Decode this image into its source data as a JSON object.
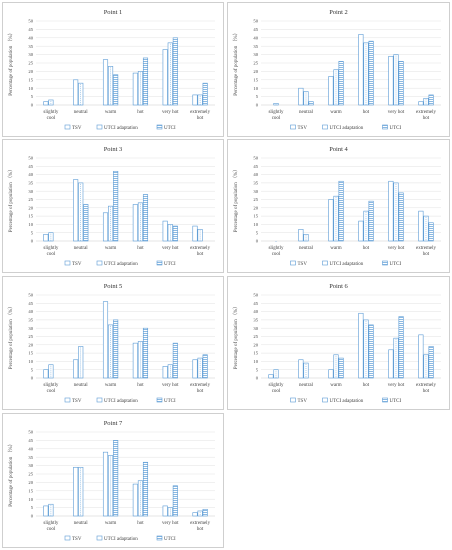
{
  "colors": {
    "series_stroke": "#5b9bd5",
    "hatch": "#5b9bd5",
    "grid": "#d9d9d9",
    "frame": "#cfcfcf"
  },
  "chart_data": [
    {
      "type": "bar",
      "title": "Point 1",
      "ylabel": "Percentage of population （%）",
      "ylim": [
        0,
        50
      ],
      "yticks": [
        0,
        5,
        10,
        15,
        20,
        25,
        30,
        35,
        40,
        45,
        50
      ],
      "categories": [
        "slightly cool",
        "neutral",
        "warm",
        "hot",
        "very hot",
        "extremely hot"
      ],
      "series": [
        {
          "name": "TSV",
          "values": [
            2,
            15,
            27,
            19,
            33,
            6
          ]
        },
        {
          "name": "UTCI adaptation",
          "values": [
            3,
            13,
            23,
            20,
            37,
            6
          ]
        },
        {
          "name": "UTCI",
          "values": [
            0,
            0,
            18,
            28,
            40,
            13
          ]
        }
      ]
    },
    {
      "type": "bar",
      "title": "Point 2",
      "ylabel": "Percentage of population （%）",
      "ylim": [
        0,
        50
      ],
      "yticks": [
        0,
        5,
        10,
        15,
        20,
        25,
        30,
        35,
        40,
        45,
        50
      ],
      "categories": [
        "slightly cool",
        "neutral",
        "warm",
        "hot",
        "very hot",
        "extremely hot"
      ],
      "series": [
        {
          "name": "TSV",
          "values": [
            0,
            10,
            17,
            42,
            29,
            2
          ]
        },
        {
          "name": "UTCI adaptation",
          "values": [
            1,
            8,
            21,
            37,
            30,
            4
          ]
        },
        {
          "name": "UTCI",
          "values": [
            0,
            2,
            26,
            38,
            26,
            6
          ]
        }
      ]
    },
    {
      "type": "bar",
      "title": "Point 3",
      "ylabel": "Percentage of population （%）",
      "ylim": [
        0,
        50
      ],
      "yticks": [
        0,
        5,
        10,
        15,
        20,
        25,
        30,
        35,
        40,
        45,
        50
      ],
      "categories": [
        "slightly cool",
        "neutral",
        "warm",
        "hot",
        "very hot",
        "extremely hot"
      ],
      "series": [
        {
          "name": "TSV",
          "values": [
            4,
            37,
            17,
            22,
            12,
            9
          ]
        },
        {
          "name": "UTCI adaptation",
          "values": [
            5,
            35,
            21,
            23,
            10,
            7
          ]
        },
        {
          "name": "UTCI",
          "values": [
            0,
            22,
            42,
            28,
            9,
            0
          ]
        }
      ]
    },
    {
      "type": "bar",
      "title": "Point 4",
      "ylabel": "Percentage of population （%）",
      "ylim": [
        0,
        50
      ],
      "yticks": [
        0,
        5,
        10,
        15,
        20,
        25,
        30,
        35,
        40,
        45,
        50
      ],
      "categories": [
        "slightly cool",
        "neutral",
        "warm",
        "hot",
        "very hot",
        "extremely hot"
      ],
      "series": [
        {
          "name": "TSV",
          "values": [
            0,
            7,
            25,
            12,
            36,
            18
          ]
        },
        {
          "name": "UTCI adaptation",
          "values": [
            0,
            4,
            27,
            18,
            35,
            15
          ]
        },
        {
          "name": "UTCI",
          "values": [
            0,
            0,
            36,
            24,
            29,
            11
          ]
        }
      ]
    },
    {
      "type": "bar",
      "title": "Point 5",
      "ylabel": "Percentage of population （%）",
      "ylim": [
        0,
        50
      ],
      "yticks": [
        0,
        5,
        10,
        15,
        20,
        25,
        30,
        35,
        40,
        45,
        50
      ],
      "categories": [
        "slightly cool",
        "neutral",
        "warm",
        "hot",
        "very hot",
        "extremely hot"
      ],
      "series": [
        {
          "name": "TSV",
          "values": [
            5,
            11,
            46,
            21,
            7,
            11
          ]
        },
        {
          "name": "UTCI adaptation",
          "values": [
            8,
            19,
            32,
            22,
            8,
            12
          ]
        },
        {
          "name": "UTCI",
          "values": [
            0,
            0,
            35,
            30,
            21,
            14
          ]
        }
      ]
    },
    {
      "type": "bar",
      "title": "Point 6",
      "ylabel": "Percentage of population （%）",
      "ylim": [
        0,
        50
      ],
      "yticks": [
        0,
        5,
        10,
        15,
        20,
        25,
        30,
        35,
        40,
        45,
        50
      ],
      "categories": [
        "slightly cool",
        "neutral",
        "warm",
        "hot",
        "very hot",
        "extremely hot"
      ],
      "series": [
        {
          "name": "TSV",
          "values": [
            2,
            11,
            5,
            39,
            17,
            26
          ]
        },
        {
          "name": "UTCI adaptation",
          "values": [
            5,
            9,
            14,
            35,
            24,
            14
          ]
        },
        {
          "name": "UTCI",
          "values": [
            0,
            0,
            12,
            32,
            37,
            19
          ]
        }
      ]
    },
    {
      "type": "bar",
      "title": "Point 7",
      "ylabel": "Percentage of population （%）",
      "ylim": [
        0,
        50
      ],
      "yticks": [
        0,
        5,
        10,
        15,
        20,
        25,
        30,
        35,
        40,
        45,
        50
      ],
      "categories": [
        "slightly cool",
        "neutral",
        "warm",
        "hot",
        "very hot",
        "extremely hot"
      ],
      "series": [
        {
          "name": "TSV",
          "values": [
            6,
            29,
            38,
            19,
            6,
            2
          ]
        },
        {
          "name": "UTCI adaptation",
          "values": [
            7,
            29,
            36,
            21,
            5,
            3
          ]
        },
        {
          "name": "UTCI",
          "values": [
            0,
            0,
            45,
            32,
            18,
            4
          ]
        }
      ]
    }
  ]
}
